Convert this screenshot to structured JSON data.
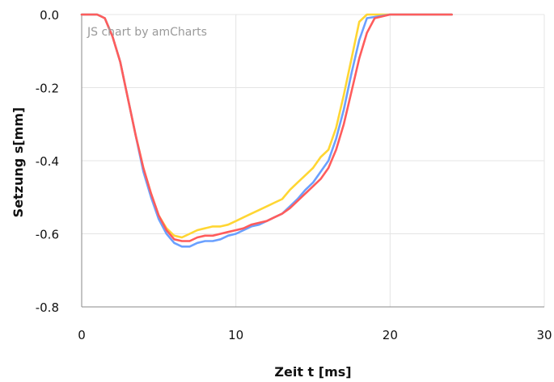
{
  "credit": "JS chart by amCharts",
  "colors": {
    "background": "#ffffff",
    "grid": "#e4e4e4",
    "axis": "#8a8a8a",
    "text": "#111111"
  },
  "chart_data": {
    "type": "line",
    "title": "",
    "xlabel": "Zeit t [ms]",
    "ylabel": "Setzung s[mm]",
    "xlim": [
      0,
      30
    ],
    "ylim": [
      -0.8,
      0.0
    ],
    "x_ticks": [
      0,
      10,
      20,
      30
    ],
    "x_tick_labels": [
      "0",
      "10",
      "20",
      "30"
    ],
    "y_ticks": [
      0.0,
      -0.2,
      -0.4,
      -0.6,
      -0.8
    ],
    "y_tick_labels": [
      "0.0",
      "-0.2",
      "-0.4",
      "-0.6",
      "-0.8"
    ],
    "grid": true,
    "series": [
      {
        "color": "#ffd633",
        "x": [
          0,
          1,
          1.5,
          2,
          2.5,
          3,
          3.5,
          4,
          4.5,
          5,
          5.5,
          6,
          6.5,
          7,
          7.5,
          8,
          8.5,
          9,
          9.5,
          10,
          10.5,
          11,
          11.5,
          12,
          12.5,
          13,
          13.5,
          14,
          14.5,
          15,
          15.5,
          16,
          16.5,
          17,
          17.5,
          18,
          18.5,
          20,
          24
        ],
        "y": [
          0,
          0,
          -0.01,
          -0.06,
          -0.13,
          -0.23,
          -0.33,
          -0.42,
          -0.49,
          -0.55,
          -0.585,
          -0.605,
          -0.61,
          -0.6,
          -0.59,
          -0.585,
          -0.58,
          -0.58,
          -0.575,
          -0.565,
          -0.555,
          -0.545,
          -0.535,
          -0.525,
          -0.515,
          -0.505,
          -0.48,
          -0.46,
          -0.44,
          -0.42,
          -0.39,
          -0.37,
          -0.31,
          -0.22,
          -0.12,
          -0.02,
          0,
          0,
          0
        ]
      },
      {
        "color": "#6aa0ff",
        "x": [
          0,
          1,
          1.5,
          2,
          2.5,
          3,
          3.5,
          4,
          4.5,
          5,
          5.5,
          6,
          6.5,
          7,
          7.5,
          8,
          8.5,
          9,
          9.5,
          10,
          10.5,
          11,
          11.5,
          12,
          12.5,
          13,
          13.5,
          14,
          14.5,
          15,
          15.5,
          16,
          16.5,
          17,
          17.5,
          18,
          18.5,
          20,
          24
        ],
        "y": [
          0,
          0,
          -0.01,
          -0.06,
          -0.13,
          -0.23,
          -0.33,
          -0.43,
          -0.5,
          -0.56,
          -0.6,
          -0.625,
          -0.635,
          -0.635,
          -0.625,
          -0.62,
          -0.62,
          -0.615,
          -0.605,
          -0.6,
          -0.59,
          -0.58,
          -0.575,
          -0.565,
          -0.555,
          -0.545,
          -0.525,
          -0.505,
          -0.48,
          -0.46,
          -0.43,
          -0.4,
          -0.34,
          -0.26,
          -0.16,
          -0.07,
          -0.01,
          0,
          0
        ]
      },
      {
        "color": "#ff5c5c",
        "x": [
          0,
          1,
          1.5,
          2,
          2.5,
          3,
          3.5,
          4,
          4.5,
          5,
          5.5,
          6,
          6.5,
          7,
          7.5,
          8,
          8.5,
          9,
          9.5,
          10,
          10.5,
          11,
          11.5,
          12,
          12.5,
          13,
          13.5,
          14,
          14.5,
          15,
          15.5,
          16,
          16.5,
          17,
          17.5,
          18,
          18.5,
          19,
          20,
          24
        ],
        "y": [
          0,
          0,
          -0.01,
          -0.06,
          -0.13,
          -0.23,
          -0.33,
          -0.42,
          -0.49,
          -0.55,
          -0.59,
          -0.615,
          -0.62,
          -0.62,
          -0.61,
          -0.605,
          -0.605,
          -0.6,
          -0.595,
          -0.59,
          -0.585,
          -0.575,
          -0.57,
          -0.565,
          -0.555,
          -0.545,
          -0.53,
          -0.51,
          -0.49,
          -0.47,
          -0.45,
          -0.42,
          -0.37,
          -0.3,
          -0.21,
          -0.12,
          -0.05,
          -0.01,
          0,
          0
        ]
      }
    ]
  }
}
